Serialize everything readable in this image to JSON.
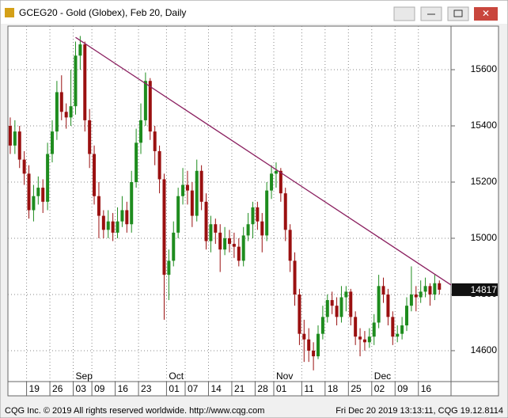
{
  "window_title": "GCEG20 - Gold (Globex), Feb 20, Daily",
  "footer_left": "CQG Inc. © 2019 All rights reserved worldwide. http://www.cqg.com",
  "footer_right": "Fri Dec 20 2019 13:13:11, CQG 19.12.8114",
  "chart_data": {
    "type": "candlestick",
    "up_color": "#1e8c1e",
    "down_color": "#9a1010",
    "grid": true,
    "xlim": [
      -0.5,
      94.5
    ],
    "ylim": [
      14490,
      15755
    ],
    "yticks": [
      14600,
      14800,
      15000,
      15200,
      15400,
      15600
    ],
    "xticks": [
      {
        "value": 4,
        "label": "19"
      },
      {
        "value": 9,
        "label": "26"
      },
      {
        "value": 14,
        "label": "03"
      },
      {
        "value": 18,
        "label": "09"
      },
      {
        "value": 23,
        "label": "16"
      },
      {
        "value": 28,
        "label": "23"
      },
      {
        "value": 34,
        "label": "01"
      },
      {
        "value": 38,
        "label": "07"
      },
      {
        "value": 43,
        "label": "14"
      },
      {
        "value": 48,
        "label": "21"
      },
      {
        "value": 53,
        "label": "28"
      },
      {
        "value": 57,
        "label": "01"
      },
      {
        "value": 63,
        "label": "11"
      },
      {
        "value": 68,
        "label": "18"
      },
      {
        "value": 73,
        "label": "25"
      },
      {
        "value": 78,
        "label": "02"
      },
      {
        "value": 83,
        "label": "09"
      },
      {
        "value": 88,
        "label": "16"
      }
    ],
    "month_labels": [
      {
        "x": 14,
        "label": "Sep"
      },
      {
        "x": 34,
        "label": "Oct"
      },
      {
        "x": 57,
        "label": "Nov"
      },
      {
        "x": 78,
        "label": "Dec"
      }
    ],
    "trendline": {
      "x": [
        14,
        94.5
      ],
      "values": [
        15715,
        14834
      ],
      "color": "#8b2060"
    },
    "last_price": 14817,
    "ohlc": [
      [
        15400,
        15430,
        15300,
        15330
      ],
      [
        15330,
        15420,
        15300,
        15380
      ],
      [
        15380,
        15400,
        15250,
        15280
      ],
      [
        15280,
        15310,
        15190,
        15230
      ],
      [
        15230,
        15260,
        15070,
        15100
      ],
      [
        15100,
        15190,
        15060,
        15150
      ],
      [
        15150,
        15220,
        15120,
        15180
      ],
      [
        15180,
        15210,
        15090,
        15130
      ],
      [
        15130,
        15340,
        15100,
        15300
      ],
      [
        15300,
        15420,
        15270,
        15380
      ],
      [
        15380,
        15560,
        15350,
        15520
      ],
      [
        15520,
        15580,
        15420,
        15450
      ],
      [
        15450,
        15480,
        15390,
        15430
      ],
      [
        15430,
        15600,
        15400,
        15470
      ],
      [
        15470,
        15700,
        15440,
        15650
      ],
      [
        15650,
        15720,
        15600,
        15690
      ],
      [
        15690,
        15700,
        15380,
        15420
      ],
      [
        15420,
        15460,
        15250,
        15300
      ],
      [
        15300,
        15330,
        15120,
        15150
      ],
      [
        15150,
        15200,
        15000,
        15080
      ],
      [
        15080,
        15100,
        15000,
        15030
      ],
      [
        15030,
        15100,
        15000,
        15060
      ],
      [
        15060,
        15090,
        14990,
        15020
      ],
      [
        15020,
        15110,
        15000,
        15060
      ],
      [
        15060,
        15150,
        15040,
        15100
      ],
      [
        15100,
        15130,
        15020,
        15050
      ],
      [
        15050,
        15240,
        15020,
        15200
      ],
      [
        15200,
        15390,
        15180,
        15340
      ],
      [
        15340,
        15480,
        15300,
        15420
      ],
      [
        15420,
        15590,
        15400,
        15560
      ],
      [
        15560,
        15570,
        15350,
        15380
      ],
      [
        15380,
        15400,
        15260,
        15310
      ],
      [
        15310,
        15330,
        15160,
        15210
      ],
      [
        15210,
        15230,
        14710,
        14870
      ],
      [
        14870,
        14960,
        14780,
        14920
      ],
      [
        14920,
        15060,
        14900,
        15020
      ],
      [
        15020,
        15180,
        15000,
        15150
      ],
      [
        15150,
        15250,
        15120,
        15190
      ],
      [
        15190,
        15240,
        15120,
        15170
      ],
      [
        15170,
        15200,
        15040,
        15080
      ],
      [
        15080,
        15280,
        15060,
        15240
      ],
      [
        15240,
        15260,
        15100,
        15130
      ],
      [
        15130,
        15160,
        14960,
        14990
      ],
      [
        14990,
        15080,
        14950,
        15050
      ],
      [
        15050,
        15070,
        14980,
        15020
      ],
      [
        15020,
        15050,
        14880,
        14960
      ],
      [
        14960,
        15040,
        14940,
        15000
      ],
      [
        15000,
        15030,
        14950,
        14980
      ],
      [
        14980,
        15020,
        14930,
        14970
      ],
      [
        14970,
        15000,
        14900,
        14920
      ],
      [
        14920,
        15040,
        14900,
        15010
      ],
      [
        15010,
        15090,
        14990,
        15050
      ],
      [
        15050,
        15130,
        15000,
        15110
      ],
      [
        15110,
        15130,
        15030,
        15060
      ],
      [
        15060,
        15090,
        14950,
        15010
      ],
      [
        15010,
        15200,
        14990,
        15170
      ],
      [
        15170,
        15260,
        15140,
        15230
      ],
      [
        15230,
        15270,
        15180,
        15240
      ],
      [
        15240,
        15250,
        15130,
        15160
      ],
      [
        15160,
        15180,
        14990,
        15030
      ],
      [
        15030,
        15050,
        14880,
        14920
      ],
      [
        14920,
        14950,
        14760,
        14800
      ],
      [
        14800,
        14820,
        14620,
        14660
      ],
      [
        14660,
        14710,
        14560,
        14640
      ],
      [
        14640,
        14680,
        14560,
        14600
      ],
      [
        14600,
        14630,
        14530,
        14580
      ],
      [
        14580,
        14690,
        14570,
        14660
      ],
      [
        14660,
        14760,
        14640,
        14720
      ],
      [
        14720,
        14800,
        14700,
        14780
      ],
      [
        14780,
        14810,
        14730,
        14760
      ],
      [
        14760,
        14790,
        14690,
        14720
      ],
      [
        14720,
        14830,
        14700,
        14790
      ],
      [
        14790,
        14830,
        14740,
        14810
      ],
      [
        14810,
        14820,
        14690,
        14720
      ],
      [
        14720,
        14740,
        14620,
        14650
      ],
      [
        14650,
        14680,
        14580,
        14640
      ],
      [
        14640,
        14670,
        14600,
        14630
      ],
      [
        14630,
        14680,
        14610,
        14650
      ],
      [
        14650,
        14730,
        14620,
        14700
      ],
      [
        14700,
        14870,
        14680,
        14830
      ],
      [
        14830,
        14860,
        14770,
        14800
      ],
      [
        14800,
        14820,
        14690,
        14720
      ],
      [
        14720,
        14740,
        14620,
        14650
      ],
      [
        14650,
        14690,
        14630,
        14660
      ],
      [
        14660,
        14720,
        14640,
        14690
      ],
      [
        14690,
        14790,
        14670,
        14760
      ],
      [
        14760,
        14900,
        14740,
        14800
      ],
      [
        14800,
        14830,
        14740,
        14790
      ],
      [
        14790,
        14850,
        14770,
        14810
      ],
      [
        14810,
        14860,
        14790,
        14830
      ],
      [
        14830,
        14840,
        14760,
        14800
      ],
      [
        14800,
        14870,
        14780,
        14840
      ],
      [
        14840,
        14850,
        14800,
        14817
      ]
    ]
  }
}
